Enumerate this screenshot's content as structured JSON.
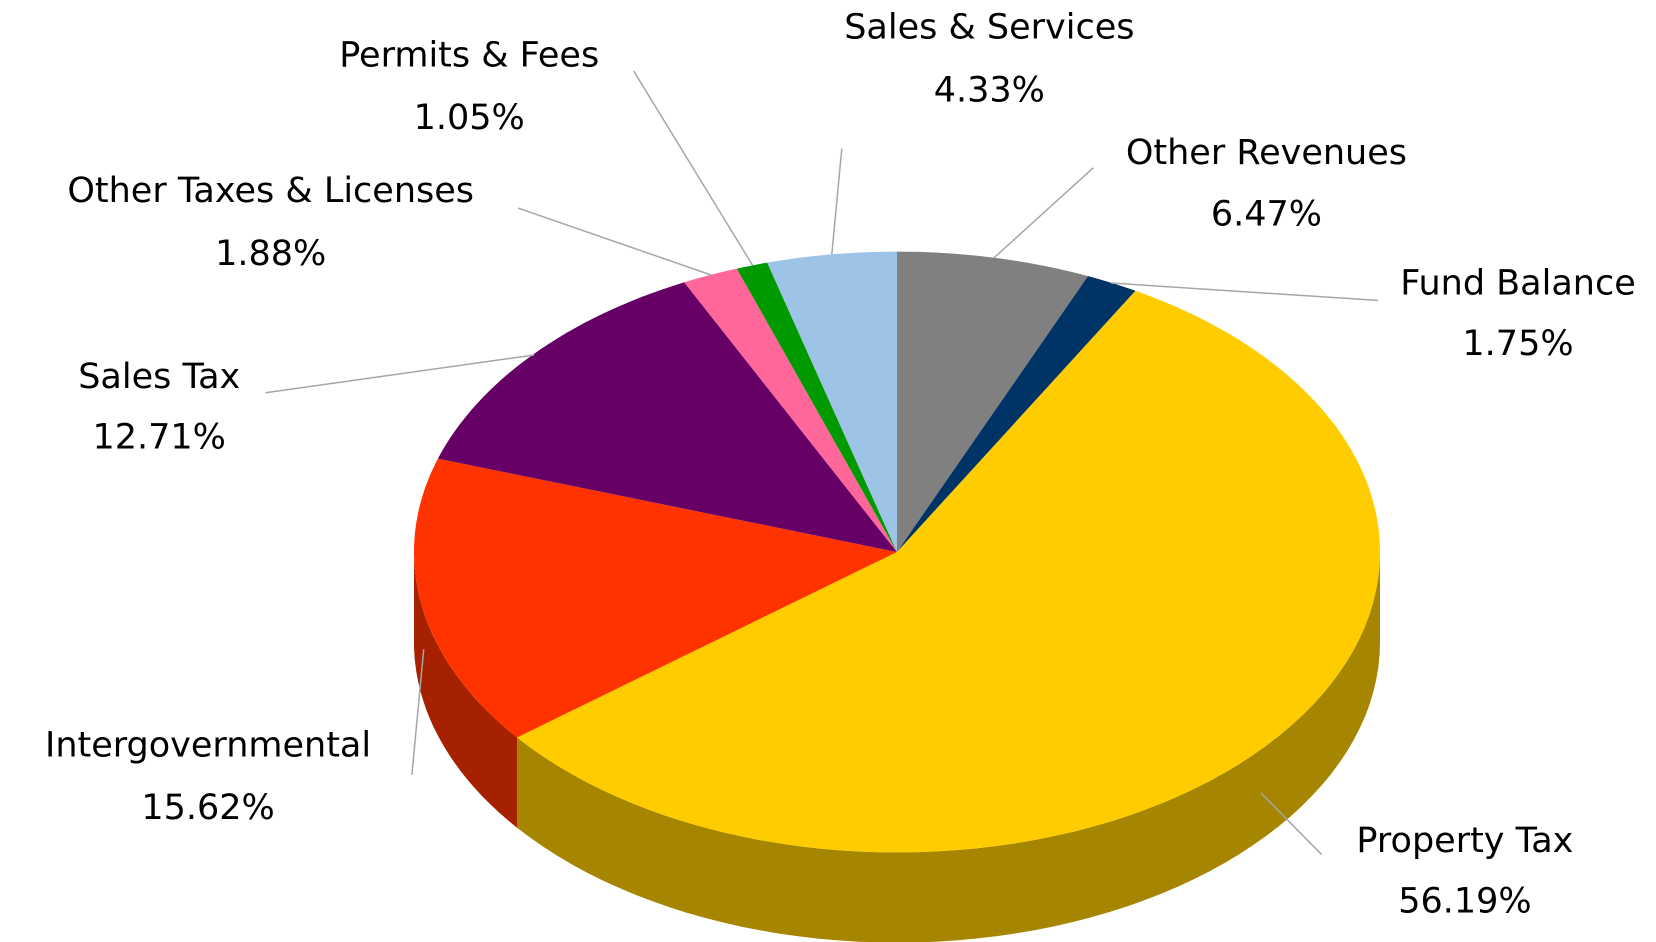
{
  "chart_data": {
    "type": "pie",
    "categories": [
      "Other Revenues",
      "Fund Balance",
      "Property Tax",
      "Intergovernmental",
      "Sales Tax",
      "Other Taxes & Licenses",
      "Permits & Fees",
      "Sales & Services"
    ],
    "values": [
      6.47,
      1.75,
      56.19,
      15.62,
      12.71,
      1.88,
      1.05,
      4.33
    ],
    "value_labels": [
      "6.47%",
      "1.75%",
      "56.19%",
      "15.62%",
      "12.71%",
      "1.88%",
      "1.05%",
      "4.33%"
    ],
    "colors": [
      "#808080",
      "#003366",
      "#ffcc00",
      "#ff3300",
      "#660066",
      "#ff6699",
      "#009900",
      "#9dc3e6"
    ]
  }
}
